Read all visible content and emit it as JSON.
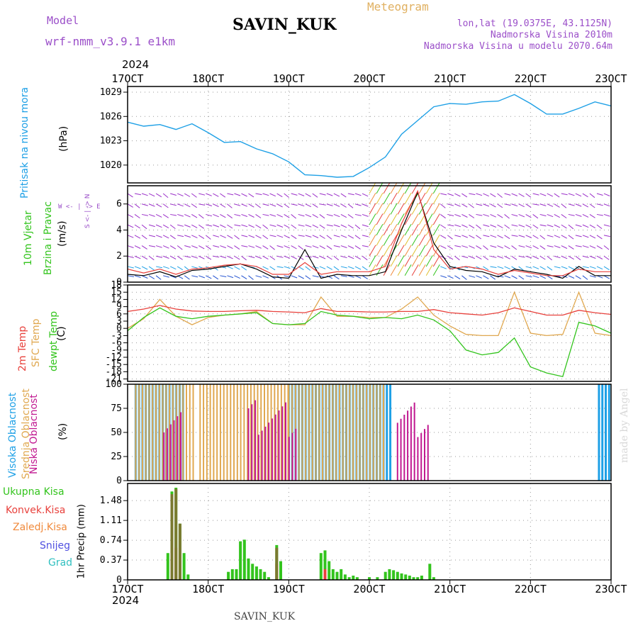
{
  "header": {
    "model_label": "Model",
    "model_name": "wrf-nmm_v3.9.1 e1km",
    "station": "SAVIN_KUK",
    "product": "Meteogram",
    "lonlat": "lon,lat (19.0375E, 43.1125N)",
    "elevation": "Nadmorska Visina 2010m",
    "model_elevation": "Nadmorska Visina u modelu 2070.64m",
    "year_top": "2024",
    "year_bottom": "2024",
    "footer_station": "SAVIN_KUK",
    "credit": "made by Angel"
  },
  "time_axis": {
    "labels": [
      "17OCT",
      "18OCT",
      "19OCT",
      "20OCT",
      "21OCT",
      "22OCT",
      "23OCT"
    ]
  },
  "panels": {
    "pressure": {
      "title": "Pritisak na nivou mora",
      "unit": "(hPa)"
    },
    "wind": {
      "title_1": "10m Vjetar",
      "title_2": "Brzina i Pravac",
      "unit": "(m/s)",
      "compass": "W <- | -> E",
      "compass_ns": "S <- | -> N"
    },
    "temp": {
      "label_1": "2m Temp",
      "label_2": "SFC Temp",
      "label_3": "dewpt Temp",
      "unit": "(C)"
    },
    "cloud": {
      "label_1": "Visoka Oblacnost",
      "label_2": "Srednja Oblacnost",
      "label_3": "Niska Oblacnost",
      "unit": "(%)"
    },
    "precip": {
      "legend": [
        "Ukupna Kisa",
        "Konvek.Kisa",
        "Zaledj.Kisa",
        "Snijeg",
        "Grad"
      ],
      "unit": "1hr Precip (mm)"
    }
  },
  "colors": {
    "pressure": "#1ea0e6",
    "temp2m": "#e8413c",
    "tsfc": "#e0a850",
    "dewpt": "#33c41d",
    "cloud_high": "#1ea0e6",
    "cloud_mid": "#e0a850",
    "cloud_low": "#c01890",
    "rain_total": "#33c41d",
    "rain_conv": "#e8413c",
    "rain_frz": "#f08a3c",
    "snow": "#5050e0",
    "grad": "#30c0c0",
    "wind_speed": "#000000",
    "wind_gust": "#e8413c"
  },
  "chart_data": [
    {
      "type": "line",
      "name": "pressure",
      "ylim": [
        1017.8,
        1029.7
      ],
      "yticks": [
        1020,
        1023,
        1026,
        1029
      ],
      "x": [
        0,
        0.2,
        0.4,
        0.6,
        0.8,
        1.0,
        1.2,
        1.4,
        1.6,
        1.8,
        2.0,
        2.2,
        2.4,
        2.6,
        2.8,
        3.0,
        3.2,
        3.4,
        3.6,
        3.8,
        4.0,
        4.2,
        4.4,
        4.6,
        4.8,
        5.0,
        5.2,
        5.4,
        5.6,
        5.8,
        6.0
      ],
      "values": [
        1025.3,
        1024.8,
        1025.0,
        1024.4,
        1025.1,
        1024.0,
        1022.8,
        1022.9,
        1022.0,
        1021.4,
        1020.4,
        1018.8,
        1018.7,
        1018.5,
        1018.6,
        1019.7,
        1021.0,
        1023.8,
        1025.5,
        1027.2,
        1027.6,
        1027.5,
        1027.8,
        1027.9,
        1028.7,
        1027.6,
        1026.3,
        1026.3,
        1027.0,
        1027.8,
        1027.3
      ]
    },
    {
      "type": "line",
      "name": "wind",
      "ylim": [
        0,
        7.4
      ],
      "yticks": [
        0,
        2,
        4,
        6
      ],
      "x": [
        0,
        0.2,
        0.4,
        0.6,
        0.8,
        1.0,
        1.2,
        1.4,
        1.6,
        1.8,
        2.0,
        2.2,
        2.4,
        2.6,
        2.8,
        3.0,
        3.2,
        3.4,
        3.6,
        3.8,
        4.0,
        4.2,
        4.4,
        4.6,
        4.8,
        5.0,
        5.2,
        5.4,
        5.6,
        5.8,
        6.0
      ],
      "series": [
        {
          "name": "speed",
          "values": [
            0.6,
            0.5,
            0.8,
            0.4,
            0.9,
            1.0,
            1.2,
            1.4,
            1.0,
            0.4,
            0.3,
            2.5,
            0.3,
            0.6,
            0.5,
            0.5,
            0.8,
            4.0,
            6.9,
            3.0,
            1.2,
            0.9,
            0.8,
            0.4,
            1.0,
            0.8,
            0.6,
            0.3,
            1.2,
            0.5,
            0.5
          ]
        },
        {
          "name": "gust",
          "values": [
            1.0,
            0.7,
            1.0,
            0.6,
            1.0,
            1.1,
            1.3,
            1.4,
            1.2,
            0.6,
            0.6,
            1.5,
            0.6,
            0.8,
            0.8,
            0.8,
            1.2,
            4.5,
            7.0,
            2.5,
            1.0,
            1.2,
            1.0,
            0.6,
            0.9,
            0.7,
            0.5,
            0.5,
            1.0,
            0.8,
            0.8
          ]
        }
      ]
    },
    {
      "type": "line",
      "name": "temperature",
      "ylim": [
        -22,
        18
      ],
      "yticks": [
        -21,
        -18,
        -15,
        -12,
        -9,
        -6,
        -3,
        0,
        3,
        6,
        9,
        12,
        15,
        18
      ],
      "x": [
        0,
        0.2,
        0.4,
        0.6,
        0.8,
        1.0,
        1.2,
        1.4,
        1.6,
        1.8,
        2.0,
        2.2,
        2.4,
        2.6,
        2.8,
        3.0,
        3.2,
        3.4,
        3.6,
        3.8,
        4.0,
        4.2,
        4.4,
        4.6,
        4.8,
        5.0,
        5.2,
        5.4,
        5.6,
        5.8,
        6.0
      ],
      "series": [
        {
          "name": "2m",
          "values": [
            7.0,
            8.0,
            9.5,
            8.0,
            7.2,
            7.0,
            7.0,
            7.3,
            7.5,
            7.0,
            6.8,
            6.5,
            8.2,
            7.0,
            7.0,
            6.8,
            6.8,
            7.0,
            7.0,
            7.8,
            6.5,
            6.0,
            5.5,
            6.5,
            8.5,
            7.0,
            5.5,
            5.5,
            7.5,
            6.5,
            5.8
          ]
        },
        {
          "name": "sfc",
          "values": [
            0,
            4.0,
            12.0,
            5.0,
            1.5,
            4.5,
            5.5,
            6.0,
            7.0,
            2.0,
            1.5,
            1.5,
            13.0,
            5.0,
            5.0,
            4.5,
            4.5,
            8.0,
            13.0,
            5.5,
            1.0,
            -2.5,
            -3.0,
            -3.0,
            15.0,
            -2.0,
            -3.0,
            -2.5,
            15.0,
            -2.0,
            -3.0
          ]
        },
        {
          "name": "dewpt",
          "values": [
            -1.0,
            4.5,
            8.5,
            5.0,
            4.0,
            5.0,
            5.5,
            6.0,
            6.5,
            2.0,
            1.5,
            2.0,
            7.0,
            5.5,
            5.0,
            4.0,
            4.5,
            4.0,
            5.5,
            3.5,
            -1.0,
            -9.0,
            -11.0,
            -10.0,
            -4.0,
            -16.0,
            -18.5,
            -20.0,
            2.5,
            1.0,
            -2.0
          ]
        }
      ]
    },
    {
      "type": "bar",
      "name": "cloud_cover",
      "ylim": [
        0,
        100
      ],
      "yticks": [
        0,
        25,
        50,
        75,
        100
      ],
      "bars": [
        {
          "series": "high",
          "spans": [
            [
              0.1,
              0.7
            ],
            [
              2.0,
              3.3
            ],
            [
              5.85,
              6.0
            ]
          ]
        },
        {
          "series": "mid",
          "spans": [
            [
              0.1,
              0.85
            ],
            [
              0.9,
              2.0
            ],
            [
              2.0,
              3.2
            ]
          ]
        },
        {
          "series": "low",
          "spans": [
            [
              0.45,
              0.7
            ],
            [
              1.5,
              2.1
            ],
            [
              3.35,
              3.75
            ]
          ]
        }
      ]
    },
    {
      "type": "bar",
      "name": "precipitation",
      "ylim": [
        0,
        1.8
      ],
      "yticks": [
        0,
        0.37,
        0.74,
        1.11,
        1.48
      ],
      "series": [
        {
          "name": "total",
          "x": [
            0.5,
            0.55,
            0.6,
            0.65,
            0.7,
            0.75,
            1.25,
            1.3,
            1.35,
            1.4,
            1.45,
            1.5,
            1.55,
            1.6,
            1.65,
            1.7,
            1.75,
            1.85,
            1.9,
            2.4,
            2.45,
            2.5,
            2.55,
            2.6,
            2.65,
            2.7,
            2.75,
            2.8,
            2.85,
            3.0,
            3.1,
            3.2,
            3.25,
            3.3,
            3.35,
            3.4,
            3.45,
            3.5,
            3.55,
            3.6,
            3.65,
            3.75,
            3.8
          ],
          "values": [
            0.5,
            1.65,
            1.72,
            1.05,
            0.5,
            0.1,
            0.15,
            0.2,
            0.2,
            0.72,
            0.75,
            0.4,
            0.3,
            0.25,
            0.2,
            0.15,
            0.05,
            0.65,
            0.35,
            0.5,
            0.55,
            0.35,
            0.2,
            0.15,
            0.2,
            0.1,
            0.05,
            0.08,
            0.05,
            0.05,
            0.05,
            0.15,
            0.2,
            0.18,
            0.15,
            0.12,
            0.1,
            0.08,
            0.05,
            0.05,
            0.08,
            0.3,
            0.05
          ]
        },
        {
          "name": "conv",
          "x": [
            0.55,
            0.6,
            1.85,
            2.45
          ],
          "values": [
            0.4,
            0.6,
            0.3,
            0.2
          ]
        },
        {
          "name": "snow",
          "x": [
            0.55,
            0.6,
            0.65,
            1.85
          ],
          "values": [
            1.6,
            1.7,
            1.05,
            0.6
          ]
        }
      ]
    }
  ]
}
